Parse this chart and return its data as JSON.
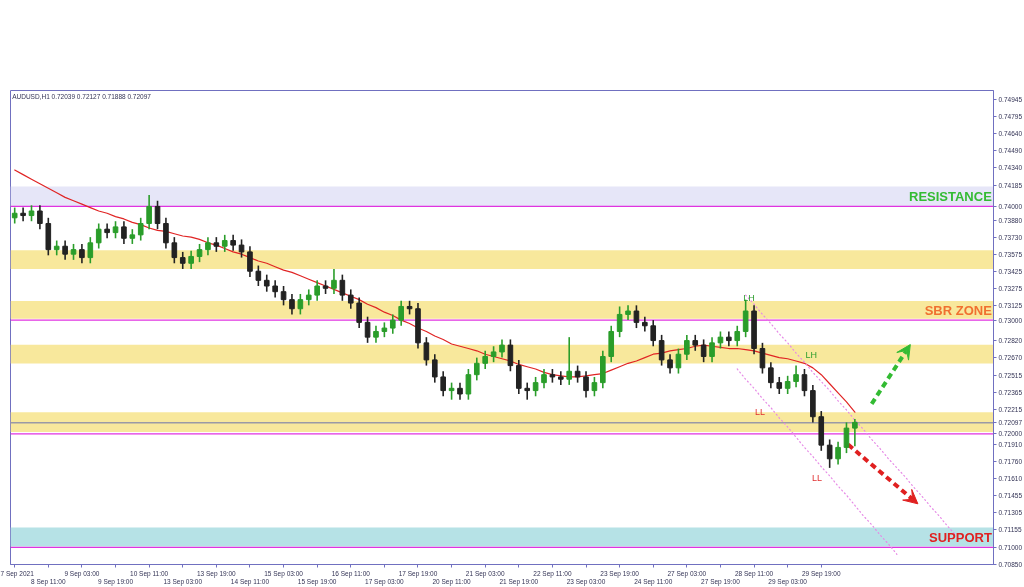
{
  "chart_data": {
    "type": "candlestick",
    "title": "AUDUSD,H1  0.72039 0.72127 0.71888 0.72097",
    "categories": [
      "7 Sep 2021",
      null,
      null,
      null,
      "8 Sep 11:00",
      null,
      null,
      null,
      "9 Sep 03:00",
      null,
      null,
      null,
      "9 Sep 19:00",
      null,
      null,
      null,
      "10 Sep 11:00",
      null,
      null,
      null,
      "13 Sep 03:00",
      null,
      null,
      null,
      "13 Sep 19:00",
      null,
      null,
      null,
      "14 Sep 11:00",
      null,
      null,
      null,
      "15 Sep 03:00",
      null,
      null,
      null,
      "15 Sep 19:00",
      null,
      null,
      null,
      "16 Sep 11:00",
      null,
      null,
      null,
      "17 Sep 03:00",
      null,
      null,
      null,
      "17 Sep 19:00",
      null,
      null,
      null,
      "20 Sep 11:00",
      null,
      null,
      null,
      "21 Sep 03:00",
      null,
      null,
      null,
      "21 Sep 19:00",
      null,
      null,
      null,
      "22 Sep 11:00",
      null,
      null,
      null,
      "23 Sep 03:00",
      null,
      null,
      null,
      "23 Sep 19:00",
      null,
      null,
      null,
      "24 Sep 11:00",
      null,
      null,
      null,
      "27 Sep 03:00",
      null,
      null,
      null,
      "27 Sep 19:00",
      null,
      null,
      null,
      "28 Sep 11:00",
      null,
      null,
      null,
      "29 Sep 03:00",
      null,
      null,
      null,
      "29 Sep 19:00",
      null,
      null,
      null,
      null,
      null,
      null,
      null,
      null,
      null,
      null,
      null,
      null,
      null,
      null,
      null,
      null,
      null,
      null,
      null,
      null
    ],
    "ohlc": [
      [
        0.739,
        0.7399,
        0.7385,
        0.7394
      ],
      [
        0.7394,
        0.7399,
        0.7387,
        0.7392
      ],
      [
        0.7392,
        0.7401,
        0.7387,
        0.7396
      ],
      [
        0.7396,
        0.7401,
        0.738,
        0.7385
      ],
      [
        0.7385,
        0.739,
        0.7357,
        0.7362
      ],
      [
        0.7362,
        0.737,
        0.7357,
        0.7365
      ],
      [
        0.7365,
        0.737,
        0.7353,
        0.7358
      ],
      [
        0.7358,
        0.7367,
        0.7353,
        0.7362
      ],
      [
        0.7362,
        0.7367,
        0.735,
        0.7355
      ],
      [
        0.7355,
        0.7373,
        0.735,
        0.7368
      ],
      [
        0.7368,
        0.7385,
        0.7363,
        0.738
      ],
      [
        0.738,
        0.7385,
        0.7372,
        0.7377
      ],
      [
        0.7377,
        0.7387,
        0.7372,
        0.7382
      ],
      [
        0.7382,
        0.7387,
        0.7367,
        0.7372
      ],
      [
        0.7372,
        0.738,
        0.7367,
        0.7375
      ],
      [
        0.7375,
        0.739,
        0.737,
        0.7385
      ],
      [
        0.7385,
        0.741,
        0.738,
        0.74
      ],
      [
        0.74,
        0.7405,
        0.738,
        0.7385
      ],
      [
        0.7385,
        0.739,
        0.7363,
        0.7368
      ],
      [
        0.7368,
        0.7373,
        0.735,
        0.7355
      ],
      [
        0.7355,
        0.736,
        0.7345,
        0.735
      ],
      [
        0.735,
        0.7361,
        0.7345,
        0.7356
      ],
      [
        0.7356,
        0.7367,
        0.7351,
        0.7362
      ],
      [
        0.7362,
        0.7373,
        0.7357,
        0.7368
      ],
      [
        0.7368,
        0.7373,
        0.736,
        0.7365
      ],
      [
        0.7365,
        0.7375,
        0.736,
        0.737
      ],
      [
        0.737,
        0.7375,
        0.7361,
        0.7366
      ],
      [
        0.7366,
        0.7371,
        0.7355,
        0.736
      ],
      [
        0.736,
        0.7365,
        0.7338,
        0.7343
      ],
      [
        0.7343,
        0.7348,
        0.733,
        0.7335
      ],
      [
        0.7335,
        0.734,
        0.7325,
        0.733
      ],
      [
        0.733,
        0.7335,
        0.732,
        0.7325
      ],
      [
        0.7325,
        0.733,
        0.7313,
        0.7318
      ],
      [
        0.7318,
        0.7323,
        0.7305,
        0.731
      ],
      [
        0.731,
        0.7323,
        0.7305,
        0.7318
      ],
      [
        0.7318,
        0.7327,
        0.7313,
        0.7322
      ],
      [
        0.7322,
        0.7335,
        0.7317,
        0.733
      ],
      [
        0.733,
        0.7335,
        0.7323,
        0.7328
      ],
      [
        0.7328,
        0.7345,
        0.7323,
        0.7335
      ],
      [
        0.7335,
        0.734,
        0.7317,
        0.7322
      ],
      [
        0.7322,
        0.7327,
        0.731,
        0.7315
      ],
      [
        0.7315,
        0.732,
        0.7293,
        0.7298
      ],
      [
        0.7298,
        0.7303,
        0.728,
        0.7285
      ],
      [
        0.7285,
        0.7295,
        0.728,
        0.729
      ],
      [
        0.729,
        0.7298,
        0.7285,
        0.7293
      ],
      [
        0.7293,
        0.7305,
        0.7288,
        0.73
      ],
      [
        0.73,
        0.7317,
        0.7295,
        0.7312
      ],
      [
        0.7312,
        0.7317,
        0.7305,
        0.731
      ],
      [
        0.731,
        0.7315,
        0.7275,
        0.728
      ],
      [
        0.728,
        0.7285,
        0.726,
        0.7265
      ],
      [
        0.7265,
        0.727,
        0.7245,
        0.725
      ],
      [
        0.725,
        0.7255,
        0.7233,
        0.7238
      ],
      [
        0.7238,
        0.7245,
        0.723,
        0.724
      ],
      [
        0.724,
        0.7245,
        0.723,
        0.7235
      ],
      [
        0.7235,
        0.7257,
        0.723,
        0.7252
      ],
      [
        0.7252,
        0.7267,
        0.7247,
        0.7262
      ],
      [
        0.7262,
        0.7273,
        0.7257,
        0.7268
      ],
      [
        0.7268,
        0.7277,
        0.7263,
        0.7272
      ],
      [
        0.7272,
        0.7283,
        0.7267,
        0.7278
      ],
      [
        0.7278,
        0.7283,
        0.7255,
        0.726
      ],
      [
        0.726,
        0.7265,
        0.7235,
        0.724
      ],
      [
        0.724,
        0.7245,
        0.723,
        0.7238
      ],
      [
        0.7238,
        0.725,
        0.7233,
        0.7245
      ],
      [
        0.7245,
        0.7257,
        0.724,
        0.7252
      ],
      [
        0.7252,
        0.7257,
        0.7245,
        0.725
      ],
      [
        0.725,
        0.7255,
        0.7243,
        0.7248
      ],
      [
        0.7248,
        0.7285,
        0.7243,
        0.7255
      ],
      [
        0.7255,
        0.726,
        0.7245,
        0.725
      ],
      [
        0.725,
        0.7255,
        0.7232,
        0.7238
      ],
      [
        0.7238,
        0.725,
        0.7233,
        0.7245
      ],
      [
        0.7245,
        0.7273,
        0.724,
        0.7268
      ],
      [
        0.7268,
        0.7295,
        0.7263,
        0.729
      ],
      [
        0.729,
        0.7312,
        0.7285,
        0.7305
      ],
      [
        0.7305,
        0.7313,
        0.73,
        0.7308
      ],
      [
        0.7308,
        0.7313,
        0.7293,
        0.7298
      ],
      [
        0.7298,
        0.7303,
        0.729,
        0.7295
      ],
      [
        0.7295,
        0.73,
        0.7277,
        0.7282
      ],
      [
        0.7282,
        0.7287,
        0.726,
        0.7265
      ],
      [
        0.7265,
        0.727,
        0.7253,
        0.7258
      ],
      [
        0.7258,
        0.7275,
        0.7253,
        0.727
      ],
      [
        0.727,
        0.7287,
        0.7265,
        0.7282
      ],
      [
        0.7282,
        0.7287,
        0.7273,
        0.7278
      ],
      [
        0.7278,
        0.7283,
        0.7263,
        0.7268
      ],
      [
        0.7268,
        0.7285,
        0.7263,
        0.728
      ],
      [
        0.728,
        0.729,
        0.7275,
        0.7285
      ],
      [
        0.7285,
        0.729,
        0.7277,
        0.7282
      ],
      [
        0.7282,
        0.7295,
        0.7277,
        0.729
      ],
      [
        0.729,
        0.7318,
        0.7285,
        0.7308
      ],
      [
        0.7308,
        0.7313,
        0.727,
        0.7275
      ],
      [
        0.7275,
        0.728,
        0.7253,
        0.7258
      ],
      [
        0.7258,
        0.7263,
        0.724,
        0.7245
      ],
      [
        0.7245,
        0.725,
        0.7235,
        0.724
      ],
      [
        0.724,
        0.7251,
        0.7235,
        0.7246
      ],
      [
        0.7246,
        0.726,
        0.7241,
        0.7252
      ],
      [
        0.7252,
        0.7257,
        0.7233,
        0.7238
      ],
      [
        0.7238,
        0.7243,
        0.721,
        0.7215
      ],
      [
        0.7215,
        0.722,
        0.7185,
        0.719
      ],
      [
        0.719,
        0.7195,
        0.717,
        0.7178
      ],
      [
        0.7178,
        0.7193,
        0.7173,
        0.7188
      ],
      [
        0.7188,
        0.721,
        0.7183,
        0.7205
      ],
      [
        0.7205,
        0.7213,
        0.7189,
        0.721
      ],
      null,
      null,
      null,
      null,
      null,
      null,
      null,
      null,
      null,
      null,
      null,
      null,
      null,
      null,
      null,
      null
    ],
    "series": [
      {
        "type": "line",
        "color": "#e02424",
        "values": [
          0.7432,
          0.7428,
          0.7424,
          0.742,
          0.7416,
          0.7412,
          0.7408,
          0.7405,
          0.7402,
          0.7399,
          0.7396,
          0.7394,
          0.7391,
          0.7389,
          0.7386,
          0.7384,
          0.7381,
          0.7379,
          0.7378,
          0.7376,
          0.7374,
          0.7373,
          0.7371,
          0.7368,
          0.7366,
          0.7363,
          0.736,
          0.7358,
          0.7355,
          0.7352,
          0.735,
          0.7347,
          0.7344,
          0.7342,
          0.7339,
          0.7336,
          0.7333,
          0.733,
          0.7327,
          0.7324,
          0.7321,
          0.7318,
          0.7314,
          0.7311,
          0.7307,
          0.7304,
          0.73,
          0.7297,
          0.7293,
          0.729,
          0.7286,
          0.7283,
          0.7279,
          0.7277,
          0.7275,
          0.7273,
          0.727,
          0.7268,
          0.7266,
          0.7264,
          0.7261,
          0.7259,
          0.7257,
          0.7254,
          0.7252,
          0.7251,
          0.725,
          0.725,
          0.7251,
          0.7252,
          0.7253,
          0.7256,
          0.7259,
          0.7262,
          0.7264,
          0.7267,
          0.727,
          0.7271,
          0.7273,
          0.7274,
          0.7275,
          0.7277,
          0.7278,
          0.7277,
          0.7276,
          0.7275,
          0.7275,
          0.7274,
          0.7273,
          0.7271,
          0.7269,
          0.7267,
          0.7266,
          0.7264,
          0.7262,
          0.7258,
          0.7252,
          0.7244,
          0.7236,
          0.7228,
          0.7219,
          null,
          null,
          null,
          null,
          null,
          null,
          null,
          null,
          null,
          null,
          null,
          null,
          null,
          null,
          null,
          null
        ]
      },
      {
        "type": "line",
        "color": "#e68ae6",
        "line_style": "dotted",
        "values": [
          null,
          null,
          null,
          null,
          null,
          null,
          null,
          null,
          null,
          null,
          null,
          null,
          null,
          null,
          null,
          null,
          null,
          null,
          null,
          null,
          null,
          null,
          null,
          null,
          null,
          null,
          null,
          null,
          null,
          null,
          null,
          null,
          null,
          null,
          null,
          null,
          null,
          null,
          null,
          null,
          null,
          null,
          null,
          null,
          null,
          null,
          null,
          null,
          null,
          null,
          null,
          null,
          null,
          null,
          null,
          null,
          null,
          null,
          null,
          null,
          null,
          null,
          null,
          null,
          null,
          null,
          null,
          null,
          null,
          null,
          null,
          null,
          null,
          null,
          null,
          null,
          null,
          null,
          null,
          null,
          null,
          null,
          null,
          null,
          null,
          null,
          null,
          0.7322,
          0.7314,
          0.7305,
          0.7297,
          0.7288,
          0.728,
          0.7271,
          0.7263,
          0.7254,
          0.7246,
          0.7238,
          0.7229,
          0.7221,
          0.7212,
          0.7204,
          0.7195,
          0.7187,
          0.7178,
          0.717,
          0.7162,
          0.7153,
          0.7145,
          0.7136,
          0.7128,
          0.7119,
          0.7111,
          null,
          null,
          null,
          null
        ]
      },
      {
        "type": "line",
        "color": "#e68ae6",
        "line_style": "dotted",
        "values": [
          null,
          null,
          null,
          null,
          null,
          null,
          null,
          null,
          null,
          null,
          null,
          null,
          null,
          null,
          null,
          null,
          null,
          null,
          null,
          null,
          null,
          null,
          null,
          null,
          null,
          null,
          null,
          null,
          null,
          null,
          null,
          null,
          null,
          null,
          null,
          null,
          null,
          null,
          null,
          null,
          null,
          null,
          null,
          null,
          null,
          null,
          null,
          null,
          null,
          null,
          null,
          null,
          null,
          null,
          null,
          null,
          null,
          null,
          null,
          null,
          null,
          null,
          null,
          null,
          null,
          null,
          null,
          null,
          null,
          null,
          null,
          null,
          null,
          null,
          null,
          null,
          null,
          null,
          null,
          null,
          null,
          null,
          null,
          null,
          null,
          null,
          0.7257,
          0.7248,
          0.724,
          0.7231,
          0.7223,
          0.7214,
          0.7206,
          0.7197,
          0.7188,
          0.718,
          0.7171,
          0.7163,
          0.7154,
          0.7146,
          0.7137,
          0.7128,
          0.712,
          0.7111,
          0.7103,
          0.7094,
          null,
          null,
          null,
          null,
          null,
          null,
          null,
          null,
          null,
          null,
          null
        ]
      }
    ],
    "ylim": [
      0.7085,
      0.7502
    ],
    "yticks": [
      {
        "value": 0.74945,
        "label": "0.74945"
      },
      {
        "value": 0.74795,
        "label": "0.74795"
      },
      {
        "value": 0.7464,
        "label": "0.74640"
      },
      {
        "value": 0.7449,
        "label": "0.74490"
      },
      {
        "value": 0.7434,
        "label": "0.74340"
      },
      {
        "value": 0.74185,
        "label": "0.74185"
      },
      {
        "value": 0.74,
        "label": "0.74000"
      },
      {
        "value": 0.7388,
        "label": "0.73880"
      },
      {
        "value": 0.7373,
        "label": "0.73730"
      },
      {
        "value": 0.73575,
        "label": "0.73575"
      },
      {
        "value": 0.73425,
        "label": "0.73425"
      },
      {
        "value": 0.73275,
        "label": "0.73275"
      },
      {
        "value": 0.73125,
        "label": "0.73125"
      },
      {
        "value": 0.73,
        "label": "0.73000"
      },
      {
        "value": 0.7282,
        "label": "0.72820"
      },
      {
        "value": 0.7267,
        "label": "0.72670"
      },
      {
        "value": 0.72515,
        "label": "0.72515"
      },
      {
        "value": 0.72365,
        "label": "0.72365"
      },
      {
        "value": 0.72215,
        "label": "0.72215"
      },
      {
        "value": 0.72097,
        "label": "0.72097"
      },
      {
        "value": 0.72,
        "label": "0.72000"
      },
      {
        "value": 0.7191,
        "label": "0.71910"
      },
      {
        "value": 0.7176,
        "label": "0.71760"
      },
      {
        "value": 0.7161,
        "label": "0.71610"
      },
      {
        "value": 0.71455,
        "label": "0.71455"
      },
      {
        "value": 0.71305,
        "label": "0.71305"
      },
      {
        "value": 0.71155,
        "label": "0.71155"
      },
      {
        "value": 0.71,
        "label": "0.71000"
      },
      {
        "value": 0.7085,
        "label": "0.70850"
      }
    ],
    "bands": [
      {
        "axis": "y",
        "from": 0.74,
        "to": 0.74175,
        "color": "#e6e6f8"
      },
      {
        "axis": "y",
        "from": 0.73449,
        "to": 0.73615,
        "color": "#f8e89c"
      },
      {
        "axis": "y",
        "from": 0.73012,
        "to": 0.73169,
        "color": "#f8e89c"
      },
      {
        "axis": "y",
        "from": 0.72618,
        "to": 0.72784,
        "color": "#f8e89c"
      },
      {
        "axis": "y",
        "from": 0.72015,
        "to": 0.72189,
        "color": "#f8e89c"
      },
      {
        "axis": "y",
        "from": 0.71009,
        "to": 0.71175,
        "color": "#b6e2e6"
      }
    ],
    "ref_lines": [
      {
        "axis": "y",
        "value": 0.74,
        "label": "RESISTANCE",
        "color": "#e033e0"
      },
      {
        "axis": "y",
        "value": 0.73,
        "label": "SBR ZONE",
        "color": "#e033e0"
      },
      {
        "axis": "y",
        "value": 0.72,
        "color": "#e033e0"
      },
      {
        "axis": "y",
        "value": 0.72097,
        "color": "#9a9aa6"
      },
      {
        "axis": "y",
        "value": 0.71,
        "label": "SUPPORT",
        "color": "#e033e0"
      }
    ],
    "annotations": [
      "LH",
      "LH",
      "LL",
      "LL"
    ]
  }
}
